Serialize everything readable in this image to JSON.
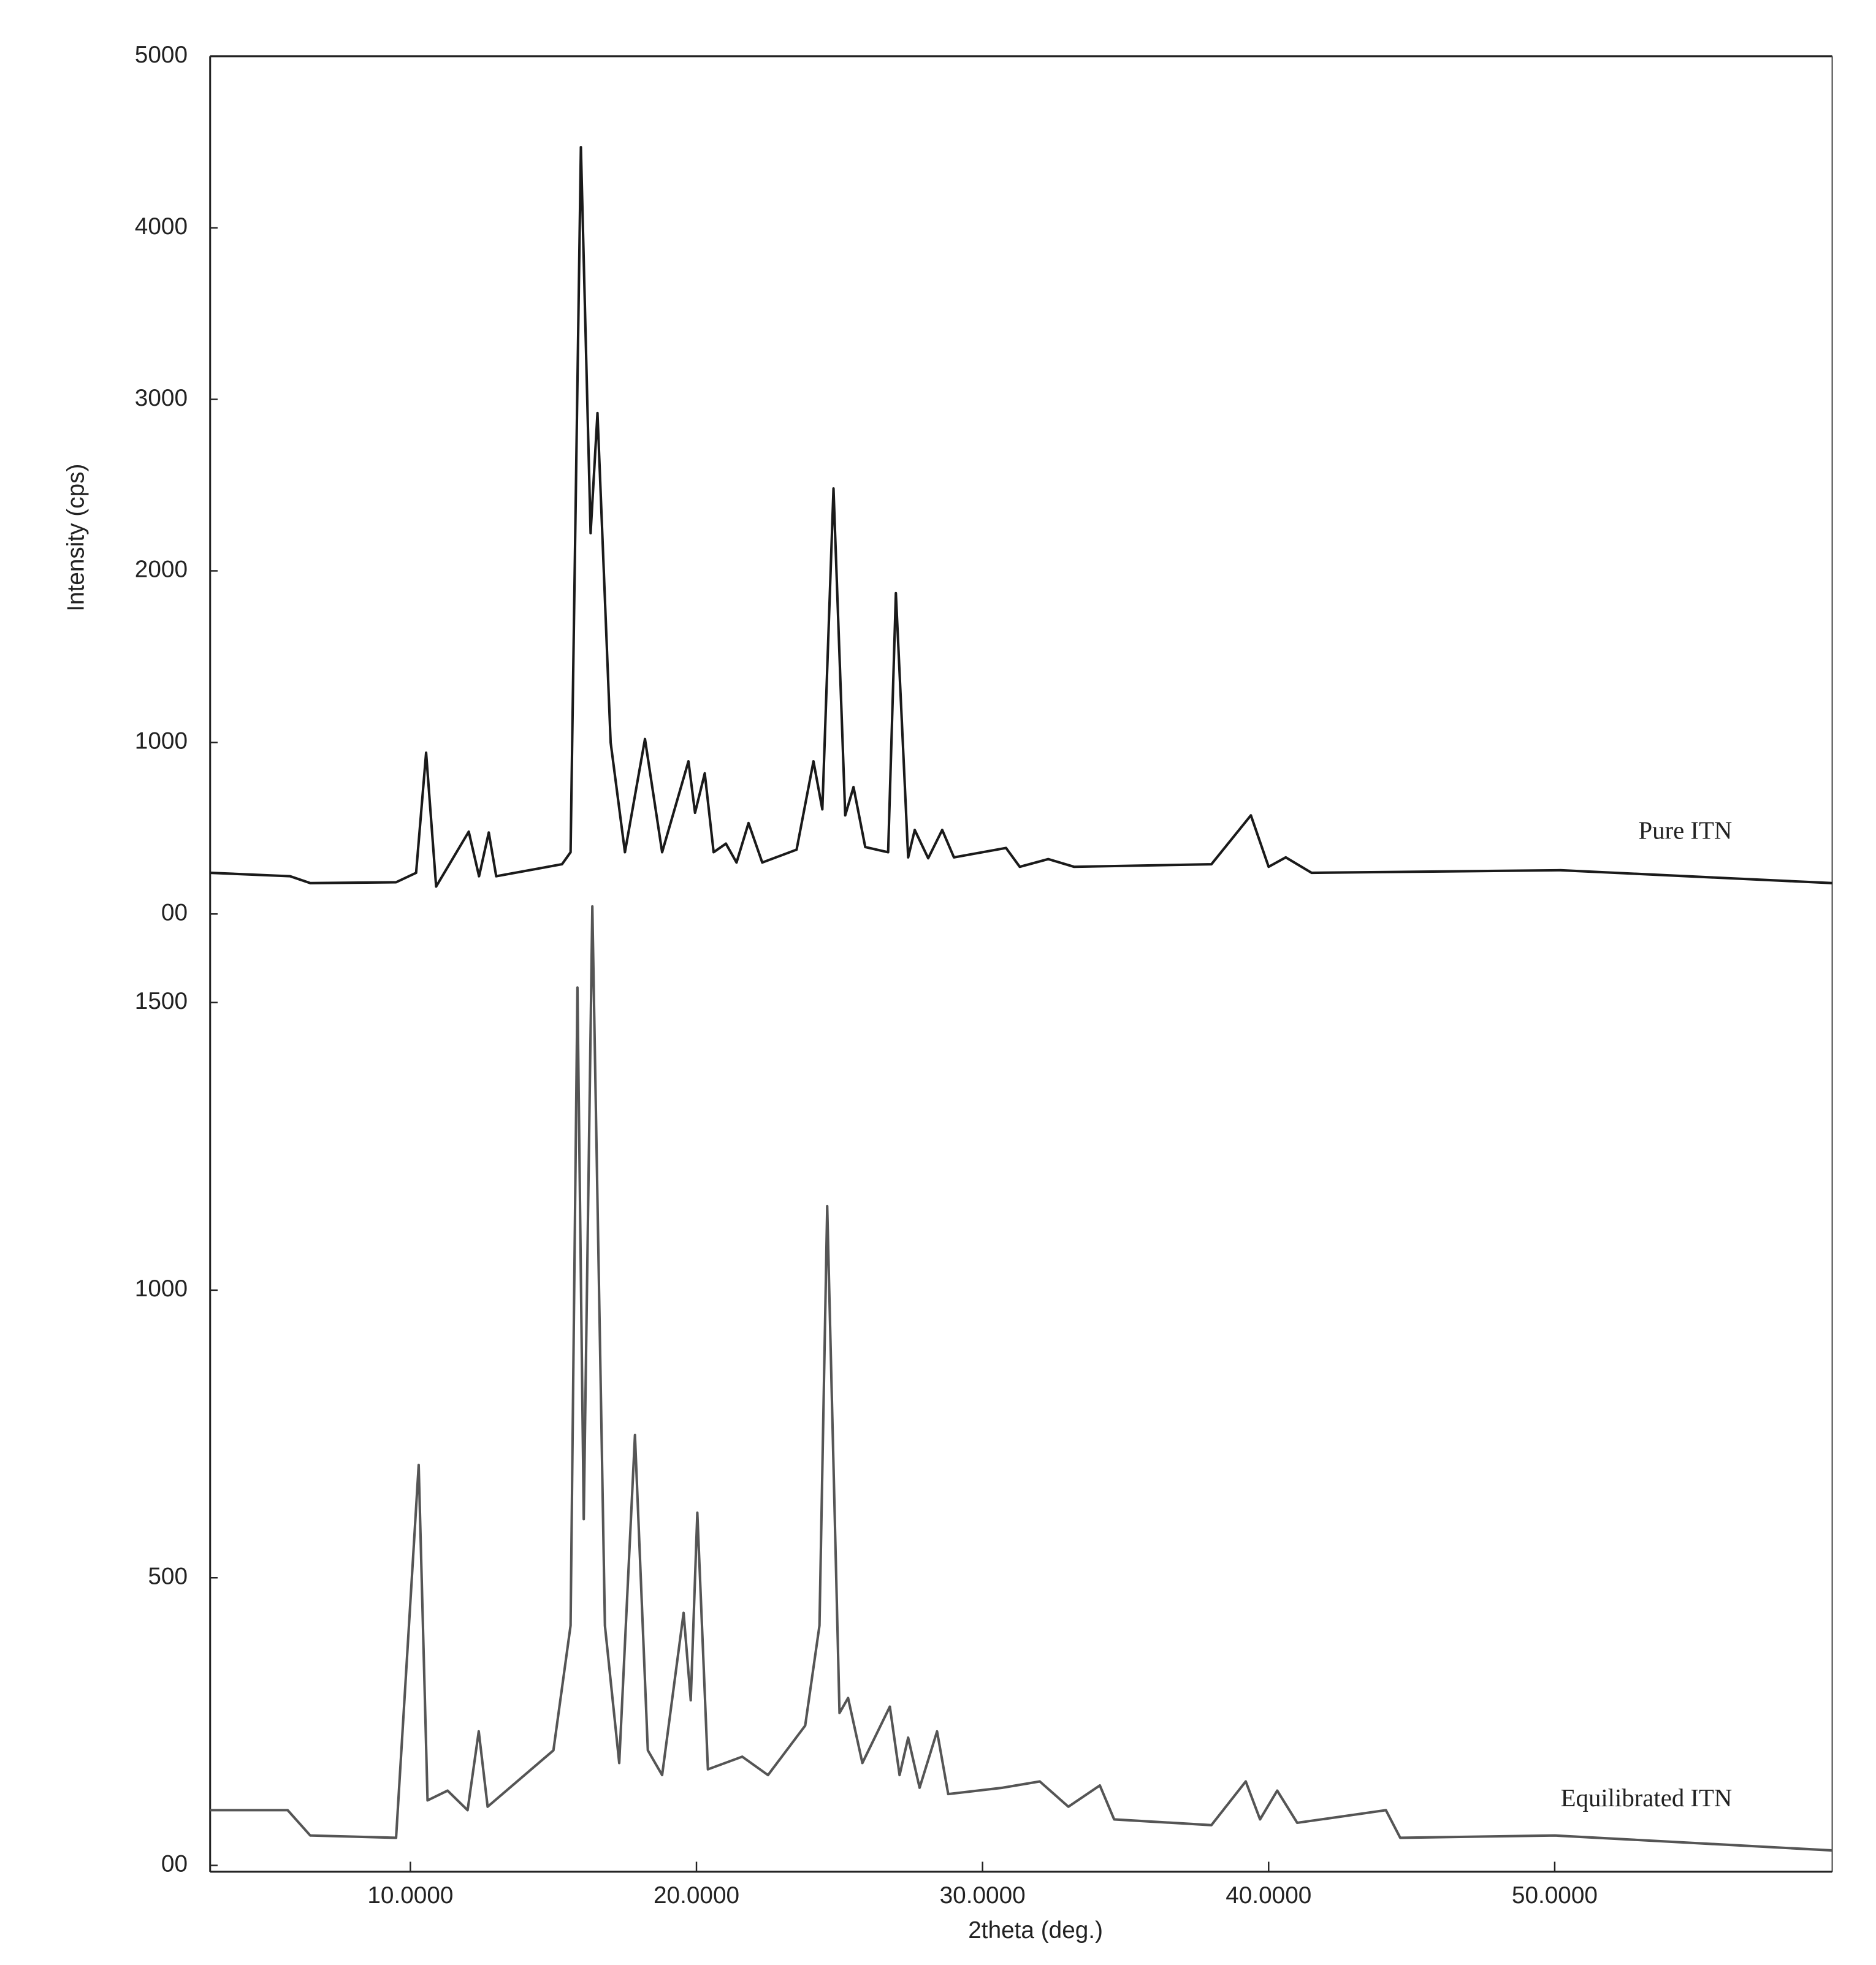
{
  "chart_data": [
    {
      "type": "line",
      "ylabel": "Intensity (cps)",
      "xlim": [
        3,
        59.7
      ],
      "ylim": [
        0,
        5000
      ],
      "yticks": [
        {
          "value": 0,
          "label": "00"
        },
        1000,
        2000,
        3000,
        4000,
        5000
      ],
      "series": [
        {
          "name": "Pure ITN",
          "color": "#1a1a1a",
          "x": [
            3,
            5.8,
            6.5,
            9.5,
            10.2,
            10.55,
            10.9,
            12.04,
            12.4,
            12.74,
            13.0,
            15.3,
            15.6,
            15.96,
            16.3,
            16.54,
            17.0,
            17.5,
            18.2,
            18.8,
            19.72,
            19.95,
            20.29,
            20.6,
            21.03,
            21.4,
            21.82,
            22.3,
            23.5,
            24.09,
            24.4,
            24.79,
            25.2,
            25.49,
            25.9,
            26.7,
            26.97,
            27.4,
            27.63,
            28.1,
            28.59,
            29.0,
            30.82,
            31.3,
            32.3,
            33.2,
            38.0,
            39.38,
            40.0,
            40.6,
            41.5,
            50.2,
            59.7
          ],
          "values": [
            240,
            220,
            180,
            185,
            240,
            940,
            160,
            480,
            220,
            475,
            220,
            290,
            360,
            4470,
            2220,
            2920,
            1000,
            360,
            1020,
            360,
            890,
            590,
            820,
            360,
            410,
            300,
            530,
            300,
            375,
            890,
            610,
            2480,
            575,
            740,
            390,
            360,
            1870,
            330,
            490,
            325,
            490,
            330,
            385,
            275,
            320,
            275,
            290,
            575,
            275,
            330,
            240,
            255,
            180
          ]
        }
      ]
    },
    {
      "type": "line",
      "xlabel": "2theta (deg.)",
      "xlim": [
        3,
        59.7
      ],
      "ylim": [
        -11,
        1680
      ],
      "xticks": [
        {
          "value": 10,
          "label": "10.0000"
        },
        {
          "value": 20,
          "label": "20.0000"
        },
        {
          "value": 30,
          "label": "30.0000"
        },
        {
          "value": 40,
          "label": "40.0000"
        },
        {
          "value": 50,
          "label": "50.0000"
        }
      ],
      "yticks": [
        {
          "value": 0,
          "label": "00"
        },
        500,
        1000,
        1500
      ],
      "series": [
        {
          "name": "Equilibrated ITN",
          "color": "#555555",
          "x": [
            3,
            5.71,
            6.5,
            9.5,
            10.29,
            10.6,
            11.3,
            12.0,
            12.39,
            12.7,
            15.0,
            15.6,
            15.84,
            16.06,
            16.36,
            16.8,
            17.3,
            17.85,
            18.3,
            18.8,
            19.55,
            19.8,
            20.03,
            20.4,
            21.6,
            22.5,
            23.8,
            24.3,
            24.57,
            25.0,
            25.3,
            25.8,
            26.76,
            27.1,
            27.4,
            27.8,
            28.41,
            28.8,
            30.7,
            32.0,
            33.0,
            34.1,
            34.6,
            38.0,
            39.2,
            39.7,
            40.3,
            41.0,
            44.1,
            44.6,
            50.0,
            59.7
          ],
          "values": [
            96,
            96,
            52,
            48,
            696,
            113,
            130,
            96,
            233,
            102,
            200,
            417,
            1526,
            602,
            1667,
            417,
            178,
            748,
            200,
            157,
            439,
            287,
            613,
            167,
            189,
            157,
            243,
            417,
            1146,
            265,
            291,
            178,
            276,
            157,
            222,
            135,
            233,
            124,
            135,
            146,
            102,
            139,
            80,
            70,
            146,
            80,
            130,
            74,
            96,
            48,
            52,
            26
          ]
        }
      ]
    }
  ]
}
